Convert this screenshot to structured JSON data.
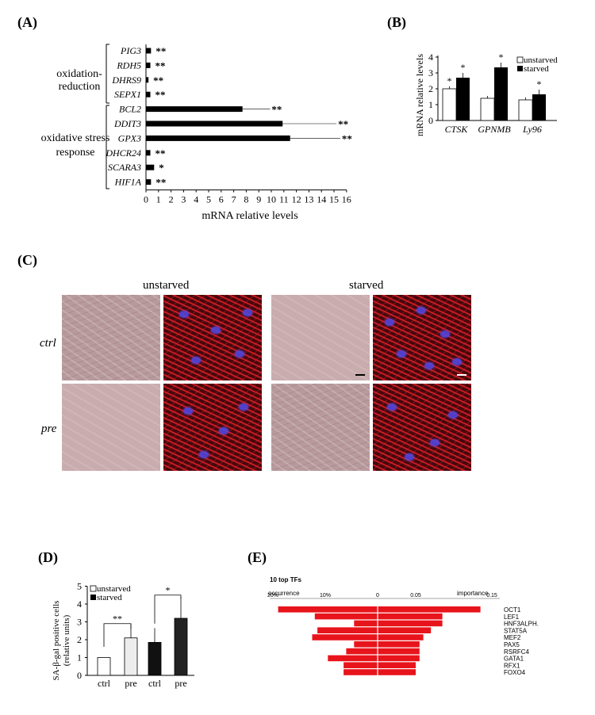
{
  "panels": {
    "A": "(A)",
    "B": "(B)",
    "C": "(C)",
    "D": "(D)",
    "E": "(E)"
  },
  "panel_a": {
    "group_oxidation": [
      "oxidation-",
      "reduction"
    ],
    "group_stress": [
      "oxidative stress",
      "response"
    ],
    "xlabel": "mRNA relative levels",
    "xticks": [
      "0",
      "1",
      "2",
      "3",
      "4",
      "5",
      "6",
      "7",
      "8",
      "9",
      "10",
      "11",
      "12",
      "13",
      "14",
      "15",
      "16"
    ]
  },
  "panel_b": {
    "ylabel": "mRNA relative levels",
    "legend": [
      "unstarved",
      "starved"
    ],
    "yticks": [
      "0",
      "1",
      "2",
      "3",
      "4"
    ]
  },
  "panel_c": {
    "col_unstarved": "unstarved",
    "col_starved": "starved",
    "row_ctrl": "ctrl",
    "row_pre": "pre"
  },
  "panel_d": {
    "ylabel": [
      "SA-β-gal positive cells",
      "(relative units)"
    ],
    "legend": [
      "unstarved",
      "starved"
    ],
    "yticks": [
      "0",
      "1",
      "2",
      "3",
      "4",
      "5"
    ],
    "sig": [
      "**",
      "*"
    ]
  },
  "panel_e": {
    "title": "10 top TFs",
    "left_label": "occurrence",
    "right_label": "importance",
    "left_ticks": [
      "20%",
      "10%",
      "0"
    ],
    "right_ticks": [
      "0.05",
      "0.15"
    ]
  },
  "colors": {
    "red": "#e8141c",
    "black": "#000000"
  },
  "chart_data": [
    {
      "type": "bar",
      "orientation": "horizontal",
      "categories": [
        "PIG3",
        "RDH5",
        "DHRS9",
        "SEPX1",
        "BCL2",
        "DDIT3",
        "GPX3",
        "DHCR24",
        "SCARA3",
        "HIF1A"
      ],
      "values": [
        0.4,
        0.35,
        0.2,
        0.35,
        7.7,
        10.9,
        11.5,
        0.35,
        0.65,
        0.4
      ],
      "sig": [
        "**",
        "**",
        "**",
        "**",
        "**",
        "**",
        "**",
        "**",
        "*",
        "**"
      ],
      "xlabel": "mRNA relative levels",
      "xlim": [
        0,
        16
      ]
    },
    {
      "type": "bar",
      "categories": [
        "CTSK",
        "GPNMB",
        "Ly96"
      ],
      "series": [
        {
          "name": "unstarved",
          "values": [
            2.0,
            1.4,
            1.3
          ]
        },
        {
          "name": "starved",
          "values": [
            2.7,
            3.35,
            1.65
          ]
        }
      ],
      "sig": [
        "*",
        "*",
        "*"
      ],
      "sig_starved": [
        "*",
        "",
        ""
      ],
      "ylabel": "mRNA relative levels",
      "ylim": [
        0,
        4
      ]
    },
    {
      "type": "bar",
      "categories": [
        "ctrl",
        "pre",
        "ctrl",
        "pre"
      ],
      "values": [
        1.0,
        2.1,
        1.85,
        3.2
      ],
      "groups": [
        "unstarved",
        "unstarved",
        "starved",
        "starved"
      ],
      "ylabel": "SA-β-gal positive cells (relative units)",
      "ylim": [
        0,
        5
      ]
    },
    {
      "type": "bar",
      "title": "10 top TFs",
      "categories": [
        "OCT1",
        "LEF1",
        "HNF3ALPH.",
        "STAT5A",
        "MEF2",
        "PAX5",
        "RSRFC4",
        "GATA1",
        "RFX1",
        "FOXO4"
      ],
      "occurrence": [
        0.19,
        0.12,
        0.045,
        0.115,
        0.125,
        0.045,
        0.06,
        0.095,
        0.065,
        0.065
      ],
      "importance": [
        0.135,
        0.085,
        0.085,
        0.07,
        0.06,
        0.055,
        0.055,
        0.055,
        0.05,
        0.05
      ],
      "xlabel_left": "occurrence",
      "xlabel_right": "importance"
    }
  ]
}
